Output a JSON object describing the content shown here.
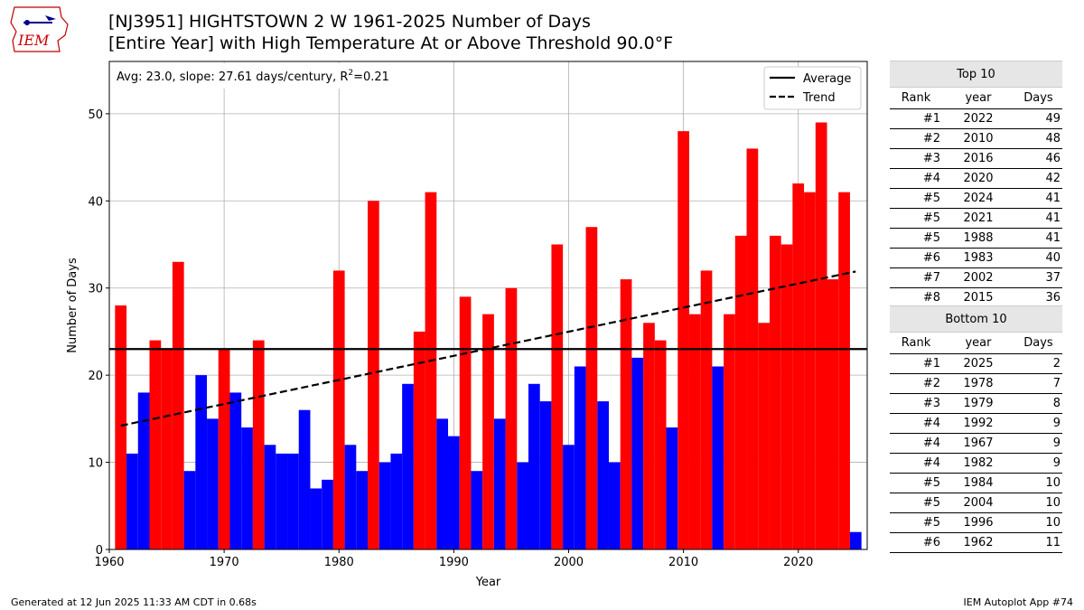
{
  "logo": {
    "text": "IEM"
  },
  "title": {
    "line1": "[NJ3951] HIGHTSTOWN 2 W 1961-2025 Number of Days",
    "line2": "[Entire Year] with High Temperature At or Above Threshold 90.0°F"
  },
  "chart_data": {
    "type": "bar",
    "title": "",
    "xlabel": "Year",
    "ylabel": "Number of Days",
    "xlim": [
      1960,
      2026
    ],
    "ylim": [
      0,
      56
    ],
    "xticks": [
      1960,
      1970,
      1980,
      1990,
      2000,
      2010,
      2020
    ],
    "yticks": [
      0,
      10,
      20,
      30,
      40,
      50
    ],
    "grid": true,
    "annotation": {
      "prefix": "Avg: 23.0, slope: 27.61 days/century, R",
      "sup": "2",
      "suffix": "=0.21"
    },
    "average": 23.0,
    "trend": {
      "start": [
        1961,
        14.2
      ],
      "end": [
        2025,
        31.9
      ]
    },
    "colors": {
      "above": "#ff0000",
      "below": "#0000ff",
      "average": "#000000",
      "trend": "#000000"
    },
    "legend": {
      "position": "top-right",
      "entries": [
        "Average",
        "Trend"
      ]
    },
    "years": [
      1961,
      1962,
      1963,
      1964,
      1965,
      1966,
      1967,
      1968,
      1969,
      1970,
      1971,
      1972,
      1973,
      1974,
      1975,
      1976,
      1977,
      1978,
      1979,
      1980,
      1981,
      1982,
      1983,
      1984,
      1985,
      1986,
      1987,
      1988,
      1989,
      1990,
      1991,
      1992,
      1993,
      1994,
      1995,
      1996,
      1997,
      1998,
      1999,
      2000,
      2001,
      2002,
      2003,
      2004,
      2005,
      2006,
      2007,
      2008,
      2009,
      2010,
      2011,
      2012,
      2013,
      2014,
      2015,
      2016,
      2017,
      2018,
      2019,
      2020,
      2021,
      2022,
      2023,
      2024,
      2025
    ],
    "values": [
      28,
      11,
      18,
      24,
      23,
      33,
      9,
      20,
      15,
      23,
      18,
      14,
      24,
      12,
      11,
      11,
      16,
      7,
      8,
      32,
      12,
      9,
      40,
      10,
      11,
      19,
      25,
      41,
      15,
      13,
      29,
      9,
      27,
      15,
      30,
      10,
      19,
      17,
      35,
      12,
      21,
      37,
      17,
      10,
      31,
      22,
      26,
      24,
      14,
      48,
      27,
      32,
      21,
      27,
      36,
      46,
      26,
      36,
      35,
      42,
      41,
      49,
      31,
      41,
      2
    ]
  },
  "top10": {
    "header": "Top 10",
    "columns": [
      "Rank",
      "year",
      "Days"
    ],
    "rows": [
      [
        "#1",
        "2022",
        "49"
      ],
      [
        "#2",
        "2010",
        "48"
      ],
      [
        "#3",
        "2016",
        "46"
      ],
      [
        "#4",
        "2020",
        "42"
      ],
      [
        "#5",
        "2024",
        "41"
      ],
      [
        "#5",
        "2021",
        "41"
      ],
      [
        "#5",
        "1988",
        "41"
      ],
      [
        "#6",
        "1983",
        "40"
      ],
      [
        "#7",
        "2002",
        "37"
      ],
      [
        "#8",
        "2015",
        "36"
      ]
    ]
  },
  "bottom10": {
    "header": "Bottom 10",
    "columns": [
      "Rank",
      "year",
      "Days"
    ],
    "rows": [
      [
        "#1",
        "2025",
        "2"
      ],
      [
        "#2",
        "1978",
        "7"
      ],
      [
        "#3",
        "1979",
        "8"
      ],
      [
        "#4",
        "1992",
        "9"
      ],
      [
        "#4",
        "1967",
        "9"
      ],
      [
        "#4",
        "1982",
        "9"
      ],
      [
        "#5",
        "1984",
        "10"
      ],
      [
        "#5",
        "2004",
        "10"
      ],
      [
        "#5",
        "1996",
        "10"
      ],
      [
        "#6",
        "1962",
        "11"
      ]
    ]
  },
  "footer": {
    "left": "Generated at 12 Jun 2025 11:33 AM CDT in 0.68s",
    "right": "IEM Autoplot App #74"
  }
}
